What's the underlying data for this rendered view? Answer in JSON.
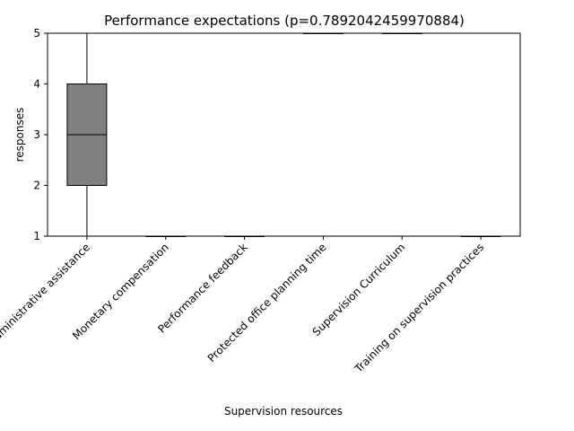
{
  "chart_data": {
    "type": "box",
    "title": "Performance expectations (p=0.7892042459970884)",
    "xlabel": "Supervision resources",
    "ylabel": "responses",
    "ylim": [
      1,
      5
    ],
    "yticks": [
      1,
      2,
      3,
      4,
      5
    ],
    "grid": false,
    "box_color": "#808080",
    "categories": [
      "Administrative assistance",
      "Monetary compensation",
      "Performance feedback",
      "Protected office planning time",
      "Supervision Curriculum",
      "Training on supervision practices"
    ],
    "boxes": [
      {
        "whisker_low": 1,
        "q1": 2,
        "median": 3,
        "q3": 4,
        "whisker_high": 5
      },
      {
        "whisker_low": 1,
        "q1": 1,
        "median": 1,
        "q3": 1,
        "whisker_high": 1
      },
      {
        "whisker_low": 1,
        "q1": 1,
        "median": 1,
        "q3": 1,
        "whisker_high": 1
      },
      {
        "whisker_low": 5,
        "q1": 5,
        "median": 5,
        "q3": 5,
        "whisker_high": 5
      },
      {
        "whisker_low": 5,
        "q1": 5,
        "median": 5,
        "q3": 5,
        "whisker_high": 5
      },
      {
        "whisker_low": 1,
        "q1": 1,
        "median": 1,
        "q3": 1,
        "whisker_high": 1
      }
    ]
  }
}
